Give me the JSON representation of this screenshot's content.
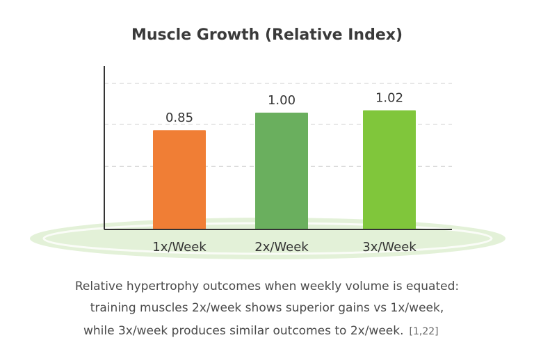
{
  "chart_data": {
    "type": "bar",
    "title": "Muscle Growth (Relative Index)",
    "xlabel": "",
    "ylabel": "",
    "categories": [
      "1x/Week",
      "2x/Week",
      "3x/Week"
    ],
    "values": [
      0.85,
      1.0,
      1.02
    ],
    "data_labels": [
      "0.85",
      "1.00",
      "1.02"
    ],
    "bar_colors": [
      "#f07e35",
      "#6aaf5e",
      "#80c63b"
    ],
    "ylim": [
      0,
      1.25
    ],
    "grid": true,
    "legend": "none"
  },
  "caption": {
    "line1": "Relative hypertrophy outcomes when weekly volume is equated:",
    "line2": "training muscles 2x/week shows superior gains vs 1x/week,",
    "line3": "while 3x/week produces similar outcomes to 2x/week.",
    "citation": "[1,22]"
  },
  "colors": {
    "axis": "#333333",
    "grid": "#cfcfcf",
    "ground": "#e3f1d8"
  }
}
